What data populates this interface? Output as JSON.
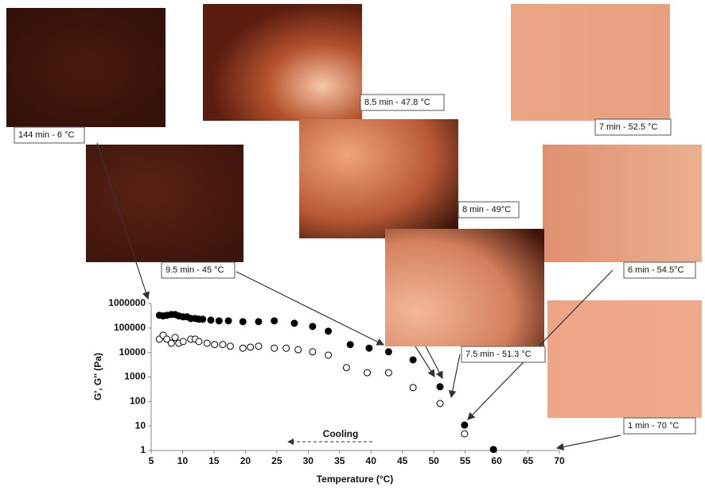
{
  "chart_data": {
    "type": "scatter",
    "x_label": "Temperature (°C)",
    "y_label": "G', G'' (Pa)",
    "xlim": [
      5,
      70
    ],
    "xticks": [
      5,
      10,
      15,
      20,
      25,
      30,
      35,
      40,
      45,
      50,
      55,
      60,
      65,
      70
    ],
    "ylim": [
      1,
      1000000
    ],
    "yticks": [
      1,
      10,
      100,
      1000,
      10000,
      100000,
      1000000
    ],
    "log_y": true,
    "annotation": "Cooling",
    "image_captions": [
      "144 min - 6 °C",
      "8.5 min - 47.8 °C",
      "7 min - 52.5 °C",
      "9.5 min - 45 °C",
      "8 min - 49°C",
      "6 min - 54.5°C",
      "7.5 min - 51.3 °C",
      "1 min - 70 °C"
    ],
    "series": [
      {
        "color": "#000000",
        "marker": "filled",
        "x": [
          6.3,
          6.9,
          7.5,
          8.2,
          8.8,
          9.4,
          10.1,
          10.7,
          11.3,
          12.0,
          12.6,
          13.2,
          14.5,
          15.8,
          17.3,
          19.6,
          22.1,
          24.6,
          27.8,
          30.7,
          33.2,
          36.7,
          39.7,
          42.8,
          46.7,
          51.0,
          54.9,
          59.5
        ],
        "values": [
          330000,
          310000,
          330000,
          355000,
          355000,
          310000,
          285000,
          285000,
          245000,
          245000,
          228000,
          228000,
          210000,
          196000,
          196000,
          182000,
          182000,
          196000,
          156000,
          116000,
          74000,
          21000,
          15000,
          10700,
          5000,
          400,
          10.9,
          1.1
        ]
      },
      {
        "color": "#000000",
        "marker": "open",
        "x": [
          6.3,
          6.9,
          7.5,
          8.2,
          8.8,
          9.4,
          10.1,
          11.3,
          12.0,
          12.6,
          13.9,
          15.1,
          16.4,
          17.6,
          19.6,
          20.8,
          22.1,
          24.6,
          26.5,
          28.4,
          30.7,
          33.2,
          36.1,
          39.4,
          42.8,
          46.7,
          51.0,
          54.9
        ],
        "values": [
          35000,
          51000,
          35000,
          24000,
          41000,
          24000,
          28000,
          35000,
          35000,
          28000,
          24000,
          21000,
          21000,
          18000,
          15000,
          16500,
          18000,
          15000,
          15000,
          13000,
          10700,
          7800,
          2400,
          1500,
          1500,
          370,
          83,
          4.8
        ]
      }
    ]
  }
}
